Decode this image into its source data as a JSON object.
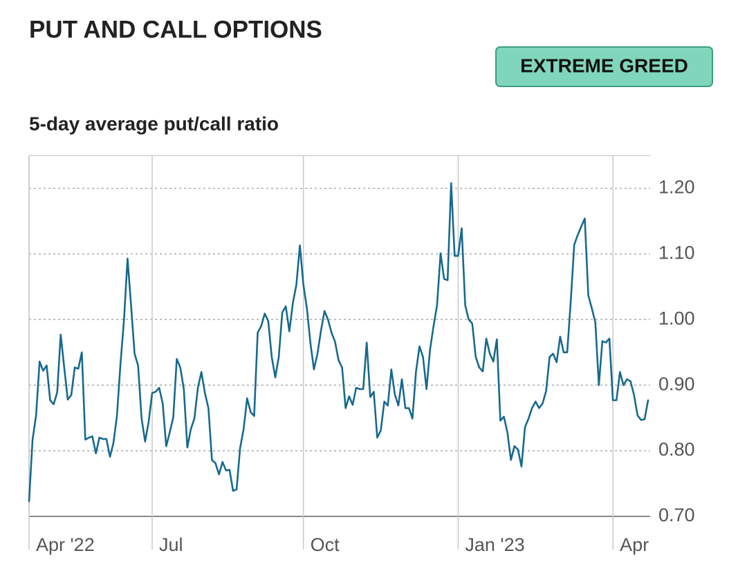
{
  "chart_data": {
    "type": "line",
    "title": "PUT AND CALL OPTIONS",
    "annotation": "EXTREME GREED",
    "subtitle": "5-day average put/call ratio",
    "color": "#17698e",
    "grid": true,
    "ylim": [
      0.7,
      1.25
    ],
    "yticks": [
      {
        "value": 0.7,
        "label": "0.70"
      },
      {
        "value": 0.8,
        "label": "0.80"
      },
      {
        "value": 0.9,
        "label": "0.90"
      },
      {
        "value": 1.0,
        "label": "1.00"
      },
      {
        "value": 1.1,
        "label": "1.10"
      },
      {
        "value": 1.2,
        "label": "1.20"
      }
    ],
    "categories": [
      "Apr '22",
      null,
      null,
      null,
      null,
      null,
      null,
      null,
      null,
      null,
      null,
      null,
      null,
      null,
      null,
      null,
      null,
      null,
      null,
      null,
      null,
      null,
      null,
      null,
      null,
      null,
      null,
      null,
      null,
      null,
      null,
      null,
      null,
      null,
      null,
      "Jul",
      null,
      null,
      null,
      null,
      null,
      null,
      null,
      null,
      null,
      null,
      null,
      null,
      null,
      null,
      null,
      null,
      null,
      null,
      null,
      null,
      null,
      null,
      null,
      null,
      null,
      null,
      null,
      null,
      null,
      null,
      null,
      null,
      null,
      null,
      null,
      null,
      null,
      null,
      null,
      null,
      null,
      null,
      "Oct",
      null,
      null,
      null,
      null,
      null,
      null,
      null,
      null,
      null,
      null,
      null,
      null,
      null,
      null,
      null,
      null,
      null,
      null,
      null,
      null,
      null,
      null,
      null,
      null,
      null,
      null,
      null,
      null,
      null,
      null,
      null,
      null,
      null,
      null,
      null,
      null,
      null,
      null,
      null,
      null,
      null,
      null,
      null,
      "Jan '23",
      null,
      null,
      null,
      null,
      null,
      null,
      null,
      null,
      null,
      null,
      null,
      null,
      null,
      null,
      null,
      null,
      null,
      null,
      null,
      null,
      null,
      null,
      null,
      null,
      null,
      null,
      null,
      null,
      null,
      null,
      null,
      null,
      null,
      null,
      null,
      null,
      null,
      null,
      null,
      null,
      null,
      null,
      null,
      "Apr",
      null,
      null,
      null,
      null,
      null,
      null,
      null,
      null,
      null,
      null
    ],
    "values": [
      0.723,
      0.817,
      0.854,
      0.936,
      0.922,
      0.93,
      0.877,
      0.871,
      0.889,
      0.977,
      0.927,
      0.878,
      0.885,
      0.927,
      0.925,
      0.95,
      0.817,
      0.82,
      0.822,
      0.796,
      0.82,
      0.818,
      0.818,
      0.791,
      0.812,
      0.854,
      0.933,
      1.0,
      1.093,
      1.022,
      0.948,
      0.93,
      0.849,
      0.814,
      0.844,
      0.888,
      0.89,
      0.896,
      0.872,
      0.807,
      0.828,
      0.851,
      0.94,
      0.927,
      0.894,
      0.805,
      0.833,
      0.849,
      0.896,
      0.92,
      0.888,
      0.865,
      0.786,
      0.781,
      0.764,
      0.783,
      0.77,
      0.771,
      0.739,
      0.741,
      0.804,
      0.833,
      0.88,
      0.859,
      0.853,
      0.98,
      0.99,
      1.009,
      0.998,
      0.943,
      0.912,
      0.943,
      1.011,
      1.02,
      0.982,
      1.025,
      1.053,
      1.113,
      1.053,
      1.017,
      0.964,
      0.924,
      0.948,
      0.983,
      1.013,
      1.0,
      0.98,
      0.966,
      0.938,
      0.927,
      0.865,
      0.883,
      0.87,
      0.896,
      0.894,
      0.894,
      0.965,
      0.882,
      0.89,
      0.82,
      0.831,
      0.875,
      0.869,
      0.924,
      0.886,
      0.869,
      0.909,
      0.865,
      0.865,
      0.849,
      0.92,
      0.959,
      0.943,
      0.894,
      0.954,
      0.99,
      1.022,
      1.101,
      1.062,
      1.06,
      1.208,
      1.097,
      1.097,
      1.139,
      1.022,
      1.0,
      0.994,
      0.943,
      0.927,
      0.921,
      0.971,
      0.948,
      0.936,
      0.97,
      0.846,
      0.852,
      0.828,
      0.786,
      0.807,
      0.802,
      0.776,
      0.836,
      0.849,
      0.865,
      0.875,
      0.865,
      0.872,
      0.891,
      0.943,
      0.948,
      0.935,
      0.974,
      0.95,
      0.95,
      1.027,
      1.114,
      1.129,
      1.142,
      1.154,
      1.037,
      1.017,
      0.996,
      0.9,
      0.967,
      0.965,
      0.971,
      0.877,
      0.877,
      0.92,
      0.9,
      0.909,
      0.906,
      0.885,
      0.854,
      0.847,
      0.848,
      0.877
    ]
  }
}
